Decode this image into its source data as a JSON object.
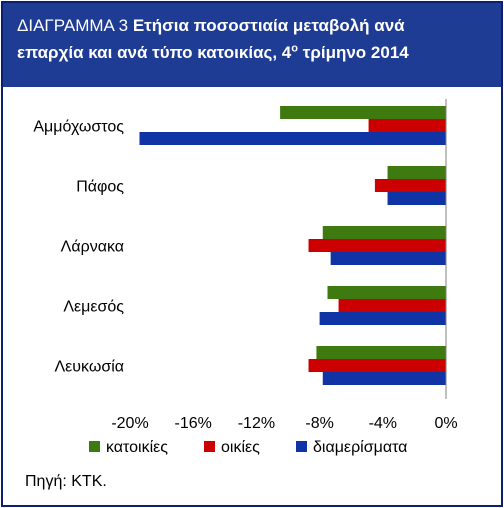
{
  "header": {
    "title_lead": "ΔΙΑΓΡΑΜΜΑ 3",
    "title_main_1": "Ετήσια ποσοστιαία μεταβολή ανά",
    "title_main_2a": "επαρχία και ανά τύπο κατοικίας, 4",
    "title_sup": "ο",
    "title_main_2b": " τρίμηνο 2014"
  },
  "source": "Πηγή: ΚΤΚ.",
  "colors": {
    "header_bg": "#1f3c94",
    "kat": "#3e7a10",
    "oik": "#cc0000",
    "diam": "#1034a6"
  },
  "chart_data": {
    "type": "bar",
    "orientation": "horizontal",
    "categories": [
      "Αμμόχωστος",
      "Πάφος",
      "Λάρνακα",
      "Λεμεσός",
      "Λευκωσία"
    ],
    "series": [
      {
        "name": "κατοικίες",
        "color": "#3e7a10",
        "values": [
          -10.5,
          -3.7,
          -7.8,
          -7.5,
          -8.2
        ]
      },
      {
        "name": "οικίες",
        "color": "#cc0000",
        "values": [
          -4.9,
          -4.5,
          -8.7,
          -6.8,
          -8.7
        ]
      },
      {
        "name": "διαμερίσματα",
        "color": "#1034a6",
        "values": [
          -19.4,
          -3.7,
          -7.3,
          -8.0,
          -7.8
        ]
      }
    ],
    "x_ticks": [
      "-20%",
      "-16%",
      "-12%",
      "-8%",
      "-4%",
      "0%"
    ],
    "xlim": [
      -20,
      0
    ],
    "legend_position": "bottom",
    "grid": false
  }
}
